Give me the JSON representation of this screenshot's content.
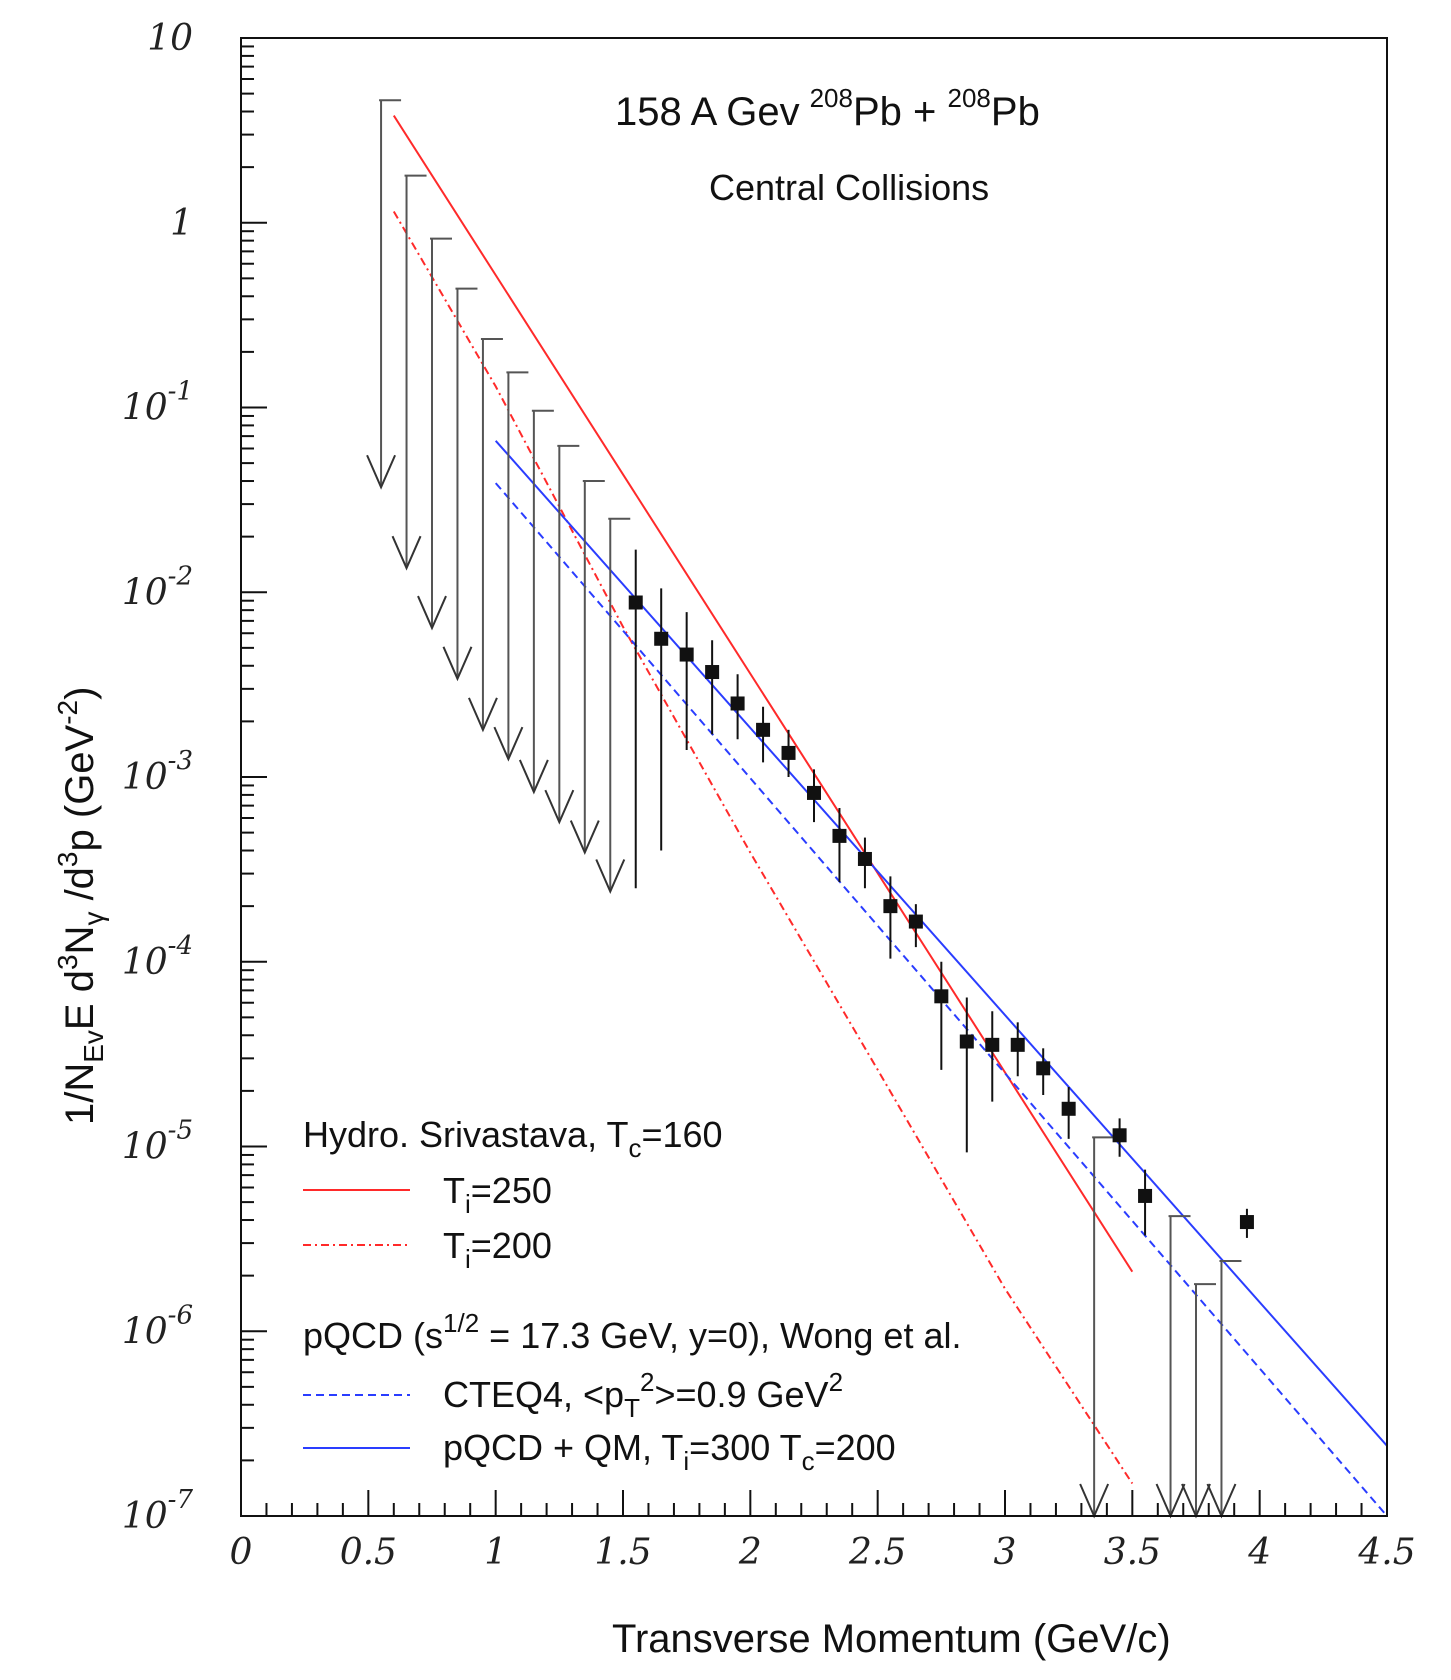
{
  "chart_data": {
    "type": "scatter",
    "title": "158 A Gev",
    "title_iso1": "208",
    "title_mid": "Pb + ",
    "title_iso2": "208",
    "title_end": "Pb",
    "subtitle": "Central Collisions",
    "xlabel": "Transverse Momentum (GeV/c)",
    "ylabel": {
      "prefix": "1/N",
      "sub1": "Ev",
      "mid1": "E d",
      "sup1": "3",
      "mid2": "N",
      "sub2": "γ",
      "mid3": " /d",
      "sup2": "3",
      "mid4": "p  (GeV",
      "sup3": "-2",
      "end": ")"
    },
    "xlim": [
      0,
      4.5
    ],
    "ylim_log10": [
      -7,
      1
    ],
    "x_ticks": [
      {
        "v": 0,
        "label": "0"
      },
      {
        "v": 0.5,
        "label": "0.5"
      },
      {
        "v": 1,
        "label": "1"
      },
      {
        "v": 1.5,
        "label": "1.5"
      },
      {
        "v": 2,
        "label": "2"
      },
      {
        "v": 2.5,
        "label": "2.5"
      },
      {
        "v": 3,
        "label": "3"
      },
      {
        "v": 3.5,
        "label": "3.5"
      },
      {
        "v": 4,
        "label": "4"
      },
      {
        "v": 4.5,
        "label": "4.5"
      }
    ],
    "y_ticks": [
      {
        "exp": 1,
        "base": "10",
        "sup": ""
      },
      {
        "exp": 0,
        "base": "1",
        "sup": ""
      },
      {
        "exp": -1,
        "base": "10",
        "sup": "-1"
      },
      {
        "exp": -2,
        "base": "10",
        "sup": "-2"
      },
      {
        "exp": -3,
        "base": "10",
        "sup": "-3"
      },
      {
        "exp": -4,
        "base": "10",
        "sup": "-4"
      },
      {
        "exp": -5,
        "base": "10",
        "sup": "-5"
      },
      {
        "exp": -6,
        "base": "10",
        "sup": "-6"
      },
      {
        "exp": -7,
        "base": "10",
        "sup": "-7"
      }
    ],
    "data_points": [
      {
        "x": 1.55,
        "y": 0.0088,
        "ylo": 0.00025,
        "yhi": 0.017
      },
      {
        "x": 1.65,
        "y": 0.0056,
        "ylo": 0.0004,
        "yhi": 0.0105
      },
      {
        "x": 1.75,
        "y": 0.0046,
        "ylo": 0.0014,
        "yhi": 0.0078
      },
      {
        "x": 1.85,
        "y": 0.0037,
        "ylo": 0.0017,
        "yhi": 0.0055
      },
      {
        "x": 1.95,
        "y": 0.0025,
        "ylo": 0.0016,
        "yhi": 0.0036
      },
      {
        "x": 2.05,
        "y": 0.0018,
        "ylo": 0.0012,
        "yhi": 0.0024
      },
      {
        "x": 2.15,
        "y": 0.00135,
        "ylo": 0.001,
        "yhi": 0.0018
      },
      {
        "x": 2.25,
        "y": 0.00082,
        "ylo": 0.00057,
        "yhi": 0.0011
      },
      {
        "x": 2.35,
        "y": 0.00048,
        "ylo": 0.00027,
        "yhi": 0.00068
      },
      {
        "x": 2.45,
        "y": 0.00036,
        "ylo": 0.00025,
        "yhi": 0.00047
      },
      {
        "x": 2.55,
        "y": 0.0002,
        "ylo": 0.000104,
        "yhi": 0.00029
      },
      {
        "x": 2.65,
        "y": 0.000165,
        "ylo": 0.00012,
        "yhi": 0.000205
      },
      {
        "x": 2.75,
        "y": 6.5e-05,
        "ylo": 2.6e-05,
        "yhi": 0.0001
      },
      {
        "x": 2.85,
        "y": 3.7e-05,
        "ylo": 9.3e-06,
        "yhi": 6.4e-05
      },
      {
        "x": 2.95,
        "y": 3.55e-05,
        "ylo": 1.75e-05,
        "yhi": 5.4e-05
      },
      {
        "x": 3.05,
        "y": 3.55e-05,
        "ylo": 2.4e-05,
        "yhi": 4.7e-05
      },
      {
        "x": 3.15,
        "y": 2.65e-05,
        "ylo": 1.9e-05,
        "yhi": 3.4e-05
      },
      {
        "x": 3.25,
        "y": 1.6e-05,
        "ylo": 1.1e-05,
        "yhi": 2.1e-05
      },
      {
        "x": 3.45,
        "y": 1.15e-05,
        "ylo": 8.8e-06,
        "yhi": 1.42e-05
      },
      {
        "x": 3.55,
        "y": 5.4e-06,
        "ylo": 3.3e-06,
        "yhi": 7.5e-06
      },
      {
        "x": 3.95,
        "y": 3.9e-06,
        "ylo": 3.2e-06,
        "yhi": 4.6e-06
      }
    ],
    "upper_limits": [
      {
        "x": 0.55,
        "top": 4.6,
        "bottom": 0.037
      },
      {
        "x": 0.65,
        "top": 1.8,
        "bottom": 0.0135
      },
      {
        "x": 0.75,
        "top": 0.82,
        "bottom": 0.0064
      },
      {
        "x": 0.85,
        "top": 0.44,
        "bottom": 0.0034
      },
      {
        "x": 0.95,
        "top": 0.235,
        "bottom": 0.0018
      },
      {
        "x": 1.05,
        "top": 0.155,
        "bottom": 0.00125
      },
      {
        "x": 1.15,
        "top": 0.096,
        "bottom": 0.00083
      },
      {
        "x": 1.25,
        "top": 0.062,
        "bottom": 0.00057
      },
      {
        "x": 1.35,
        "top": 0.04,
        "bottom": 0.00039
      },
      {
        "x": 1.45,
        "top": 0.025,
        "bottom": 0.00024
      },
      {
        "x": 3.35,
        "top": 1.12e-05,
        "bottom": 1e-07
      },
      {
        "x": 3.65,
        "top": 4.2e-06,
        "bottom": 1e-07
      },
      {
        "x": 3.75,
        "top": 1.8e-06,
        "bottom": 1e-07
      },
      {
        "x": 3.85,
        "top": 2.4e-06,
        "bottom": 1e-07
      }
    ],
    "series": [
      {
        "name": "T_i=250",
        "color": "#ff2a2a",
        "style": "solid",
        "x": [
          0.6,
          3.5
        ],
        "y": [
          3.8,
          2.1e-06
        ]
      },
      {
        "name": "T_i=200",
        "color": "#ff2a2a",
        "style": "dashdot",
        "x": [
          0.6,
          1.0,
          1.5,
          2.0,
          2.5,
          3.0,
          3.5
        ],
        "y": [
          1.15,
          0.13,
          0.0065,
          0.00039,
          2.6e-05,
          1.7e-06,
          1.5e-07
        ]
      },
      {
        "name": "CTEQ4",
        "color": "#2a3dff",
        "style": "dashed",
        "x": [
          1.0,
          4.5
        ],
        "y": [
          0.039,
          1e-07
        ]
      },
      {
        "name": "pQCD + QM",
        "color": "#2a3dff",
        "style": "solid",
        "x": [
          1.0,
          4.5
        ],
        "y": [
          0.066,
          2.4e-07
        ]
      }
    ],
    "legend": {
      "position": "bottom-left",
      "group1_header": {
        "pre": "Hydro. Srivastava,  T",
        "sub": "c",
        "post": "=160"
      },
      "entries1": [
        {
          "pre": "T",
          "sub": "i",
          "post": "=250"
        },
        {
          "pre": "T",
          "sub": "i",
          "post": "=200"
        }
      ],
      "group2_header": {
        "pre": "pQCD (s",
        "sup": "1/2",
        "post": " = 17.3 GeV, y=0), Wong et al."
      },
      "entry3": {
        "pre": "CTEQ4, <p",
        "sub": "T",
        "sup": "2",
        "mid": ">=0.9 GeV",
        "sup2": "2"
      },
      "entry4": {
        "pre": "pQCD + QM, T",
        "sub": "i",
        "mid": "=300  T",
        "sub2": "c",
        "post": "=200"
      }
    }
  }
}
